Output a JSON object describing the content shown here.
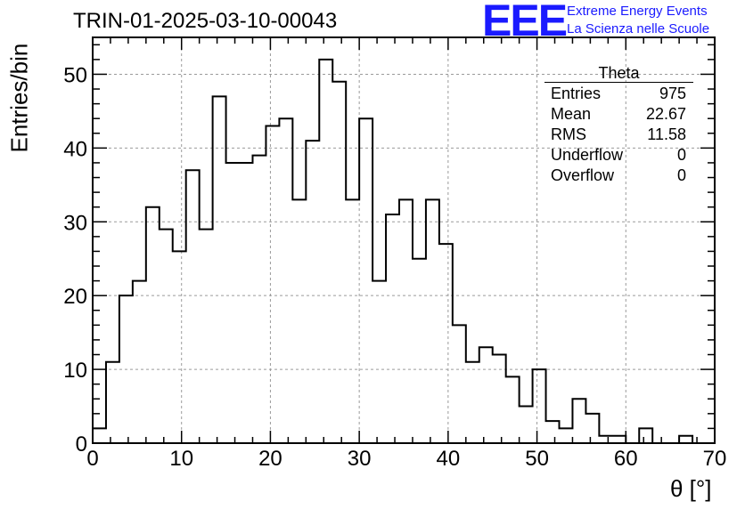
{
  "title": "TRIN-01-2025-03-10-00043",
  "logo": {
    "mark": "EEE",
    "line1": "Extreme Energy Events",
    "line2": "La Scienza nelle Scuole",
    "color": "#1a1aff"
  },
  "stats_box": {
    "title": "Theta",
    "rows": [
      {
        "label": "Entries",
        "value": "975"
      },
      {
        "label": "Mean",
        "value": "22.67"
      },
      {
        "label": "RMS",
        "value": "11.58"
      },
      {
        "label": "Underflow",
        "value": "0"
      },
      {
        "label": "Overflow",
        "value": "0"
      }
    ]
  },
  "chart_data": {
    "type": "bar",
    "style": "step-histogram",
    "title": "TRIN-01-2025-03-10-00043",
    "xlabel": "θ [°]",
    "ylabel": "Entries/bin",
    "xlim": [
      0,
      70
    ],
    "ylim": [
      0,
      55
    ],
    "x_ticks": [
      0,
      10,
      20,
      30,
      40,
      50,
      60,
      70
    ],
    "y_ticks": [
      0,
      10,
      20,
      30,
      40,
      50
    ],
    "grid": true,
    "bin_width": 1.5,
    "x": [
      0.75,
      2.25,
      3.75,
      5.25,
      6.75,
      8.25,
      9.75,
      11.25,
      12.75,
      14.25,
      15.75,
      17.25,
      18.75,
      20.25,
      21.75,
      23.25,
      24.75,
      26.25,
      27.75,
      29.25,
      30.75,
      32.25,
      33.75,
      35.25,
      36.75,
      38.25,
      39.75,
      41.25,
      42.75,
      44.25,
      45.75,
      47.25,
      48.75,
      50.25,
      51.75,
      53.25,
      54.75,
      56.25,
      57.75,
      59.25,
      60.75,
      62.25,
      63.75,
      65.25,
      66.75,
      68.25
    ],
    "values": [
      2,
      11,
      20,
      22,
      32,
      29,
      26,
      37,
      29,
      47,
      38,
      38,
      39,
      43,
      44,
      33,
      41,
      52,
      49,
      33,
      44,
      22,
      31,
      33,
      25,
      33,
      27,
      16,
      11,
      13,
      12,
      9,
      5,
      10,
      3,
      2,
      6,
      4,
      1,
      1,
      0,
      2,
      0,
      0,
      1,
      0
    ],
    "line_color": "#000000",
    "grid_color": "#9a9a9a"
  }
}
